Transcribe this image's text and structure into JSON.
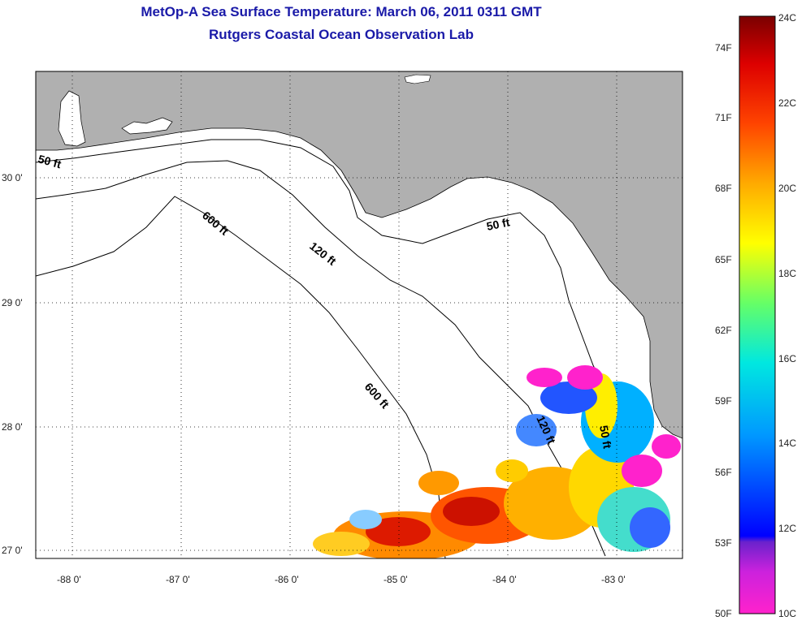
{
  "title": "MetOp-A Sea Surface Temperature:  March 06, 2011 0311 GMT",
  "subtitle": "Rutgers Coastal Ocean Observation Lab",
  "lat_labels": [
    "30 0'",
    "29 0'",
    "28 0'",
    "27 0'"
  ],
  "lon_labels": [
    "-88 0'",
    "-87 0'",
    "-86 0'",
    "-85 0'",
    "-84 0'",
    "-83 0'"
  ],
  "contours": {
    "c50_west": "50 ft",
    "c50_east": "50 ft",
    "c50_south": "50 ft",
    "c120_north": "120 ft",
    "c120_south": "120 ft",
    "c600_north": "600 ft",
    "c600_south": "600 ft"
  },
  "colorbar": {
    "fahrenheit": [
      "74F",
      "71F",
      "68F",
      "65F",
      "62F",
      "59F",
      "56F",
      "53F",
      "50F"
    ],
    "celsius": [
      "24C",
      "22C",
      "20C",
      "18C",
      "16C",
      "14C",
      "12C",
      "10C"
    ],
    "colors": [
      "#7a0000",
      "#cc0000",
      "#ff3300",
      "#ff8800",
      "#ffcc00",
      "#ffff00",
      "#88ff44",
      "#00e0c0",
      "#00ccff",
      "#0088ff",
      "#0022ff",
      "#7a22cc",
      "#ff00cc"
    ]
  },
  "colors": {
    "land": "#b0b0b0",
    "water": "#ffffff",
    "title": "#1a1aa8"
  }
}
